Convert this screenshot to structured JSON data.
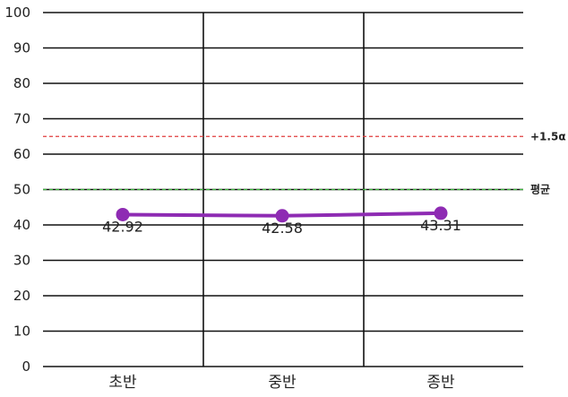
{
  "chart_data": {
    "type": "line",
    "categories": [
      "초반",
      "중반",
      "종반"
    ],
    "series": [
      {
        "values": [
          42.92,
          42.58,
          43.31
        ],
        "color": "#8e2bb3"
      }
    ],
    "data_labels": [
      "42.92",
      "42.58",
      "43.31"
    ],
    "ylim": [
      0,
      100
    ],
    "yticks": [
      0,
      10,
      20,
      30,
      40,
      50,
      60,
      70,
      80,
      90,
      100
    ],
    "ytick_labels": [
      "0",
      "10",
      "20",
      "30",
      "40",
      "50",
      "60",
      "70",
      "80",
      "90",
      "100"
    ],
    "grid": true,
    "reference_lines": [
      {
        "label": "+1.5α",
        "value": 65,
        "color": "#e03c3c",
        "style": "dashed"
      },
      {
        "label": "평균",
        "value": 50,
        "color": "#3cb43c",
        "style": "dashed"
      }
    ],
    "title": "",
    "xlabel": "",
    "ylabel": ""
  }
}
